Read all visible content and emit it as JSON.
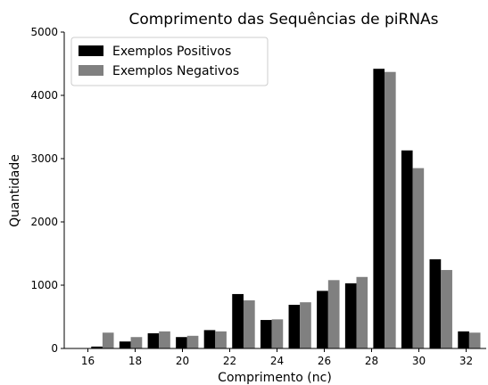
{
  "chart_data": {
    "type": "histogram",
    "title": "Comprimento das Sequências de piRNAs",
    "xlabel": "Comprimento (nc)",
    "ylabel": "Quantidade",
    "bins": [
      16,
      17.19,
      18.39,
      19.58,
      20.77,
      21.96,
      23.16,
      24.35,
      25.54,
      26.74,
      27.93,
      29.12,
      30.31,
      31.51,
      32.7
    ],
    "series": [
      {
        "name": "Exemplos Positivos",
        "color": "#000000",
        "values": [
          30,
          110,
          240,
          180,
          290,
          860,
          450,
          690,
          910,
          1030,
          4420,
          3130,
          1410,
          270
        ]
      },
      {
        "name": "Exemplos Negativos",
        "color": "#808080",
        "values": [
          250,
          180,
          270,
          200,
          270,
          760,
          460,
          730,
          1080,
          1130,
          4370,
          2850,
          1240,
          250
        ]
      }
    ],
    "xlim": [
      15,
      32.85
    ],
    "ylim": [
      0,
      5000
    ],
    "xticks": [
      16,
      18,
      20,
      22,
      24,
      26,
      28,
      30,
      32
    ],
    "yticks": [
      0,
      1000,
      2000,
      3000,
      4000,
      5000
    ],
    "legend": "upper left"
  }
}
